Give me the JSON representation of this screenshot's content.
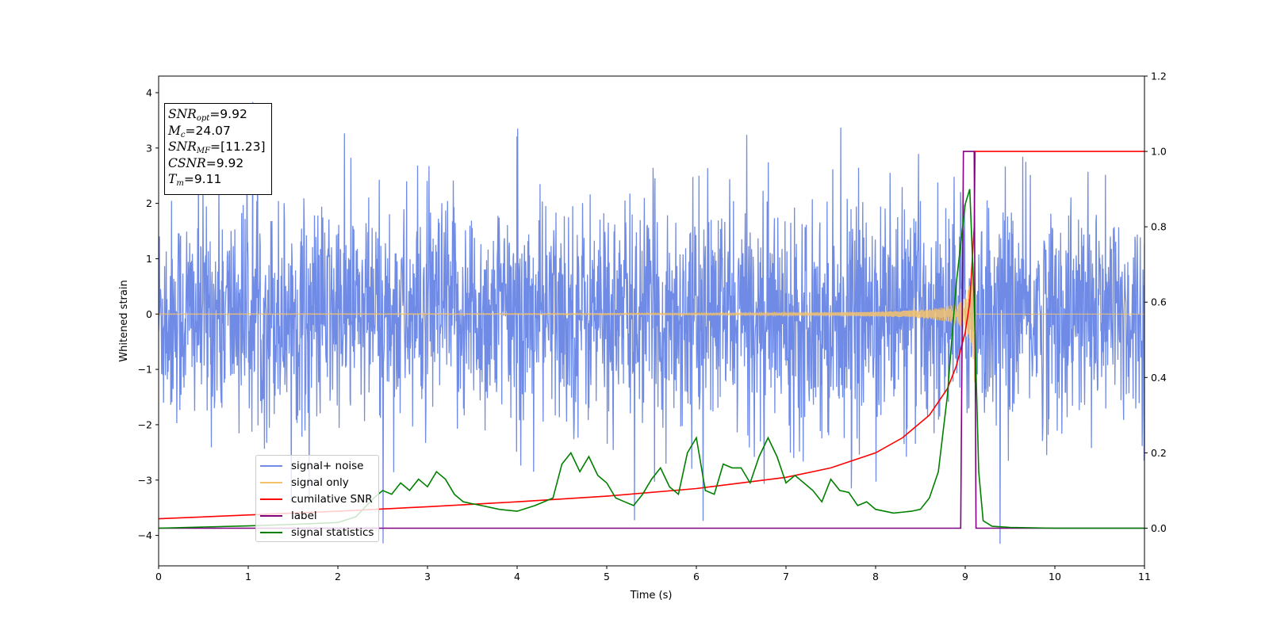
{
  "chart_data": {
    "type": "line",
    "title": "",
    "xlabel": "Time (s)",
    "ylabel": "Whitened strain",
    "xlim": [
      0,
      11
    ],
    "ylim_left": [
      -4.55,
      4.3
    ],
    "ylim_right": [
      -0.1,
      1.2
    ],
    "x_ticks": [
      0,
      1,
      2,
      3,
      4,
      5,
      6,
      7,
      8,
      9,
      10,
      11
    ],
    "y_ticks_left": [
      -4,
      -3,
      -2,
      -1,
      0,
      1,
      2,
      3,
      4
    ],
    "y_ticks_right": [
      0.0,
      0.2,
      0.4,
      0.6,
      0.8,
      1.0,
      1.2
    ],
    "x_tick_labels": [
      "0",
      "1",
      "2",
      "3",
      "4",
      "5",
      "6",
      "7",
      "8",
      "9",
      "10",
      "11"
    ],
    "y_tick_labels_left": [
      "−4",
      "−3",
      "−2",
      "−1",
      "0",
      "1",
      "2",
      "3",
      "4"
    ],
    "y_tick_labels_right": [
      "0.0",
      "0.2",
      "0.4",
      "0.6",
      "0.8",
      "1.0",
      "1.2"
    ],
    "grid": false,
    "legend_position": "lower-left",
    "series": [
      {
        "name": "signal+ noise",
        "axis": "left",
        "color": "#6f8be6",
        "description": "whitened noise, amplitude roughly within ±2.5 with spikes up to ~3.9 and down to ~-4.2"
      },
      {
        "name": "signal only",
        "axis": "left",
        "color": "#f5c26b",
        "chirp_merger_time": 9.11,
        "chirp_peak_amplitude": 1.5
      },
      {
        "name": "cumilative SNR",
        "axis": "right",
        "color": "#ff0000",
        "x": [
          0,
          1,
          2,
          3,
          4,
          5,
          6,
          7,
          7.5,
          8,
          8.3,
          8.6,
          8.8,
          8.9,
          9.0,
          9.05,
          9.1,
          9.11,
          11
        ],
        "y": [
          0.025,
          0.035,
          0.045,
          0.057,
          0.07,
          0.085,
          0.105,
          0.135,
          0.16,
          0.2,
          0.24,
          0.3,
          0.37,
          0.43,
          0.52,
          0.6,
          0.8,
          1.0,
          1.0
        ]
      },
      {
        "name": "label",
        "axis": "right",
        "color": "#800080",
        "x": [
          0,
          8.95,
          8.98,
          9.1,
          9.12,
          11
        ],
        "y": [
          0.0,
          0.0,
          1.0,
          1.0,
          0.0,
          0.0
        ]
      },
      {
        "name": "signal statistics",
        "axis": "right",
        "color": "#008000",
        "x": [
          0,
          0.5,
          1.0,
          1.5,
          2.0,
          2.2,
          2.4,
          2.5,
          2.6,
          2.7,
          2.8,
          2.9,
          3.0,
          3.1,
          3.2,
          3.3,
          3.4,
          3.5,
          3.6,
          3.8,
          4.0,
          4.2,
          4.4,
          4.5,
          4.6,
          4.7,
          4.8,
          4.9,
          5.0,
          5.1,
          5.2,
          5.3,
          5.4,
          5.5,
          5.6,
          5.7,
          5.8,
          5.9,
          6.0,
          6.1,
          6.2,
          6.3,
          6.4,
          6.5,
          6.6,
          6.7,
          6.8,
          6.9,
          7.0,
          7.1,
          7.2,
          7.3,
          7.4,
          7.5,
          7.6,
          7.7,
          7.8,
          7.9,
          8.0,
          8.2,
          8.4,
          8.5,
          8.6,
          8.7,
          8.8,
          8.9,
          9.0,
          9.05,
          9.1,
          9.15,
          9.2,
          9.3,
          9.5,
          10.0,
          11.0
        ],
        "y": [
          0.0,
          0.003,
          0.006,
          0.01,
          0.015,
          0.03,
          0.08,
          0.1,
          0.09,
          0.12,
          0.1,
          0.13,
          0.11,
          0.15,
          0.13,
          0.09,
          0.07,
          0.065,
          0.06,
          0.05,
          0.045,
          0.06,
          0.08,
          0.17,
          0.2,
          0.15,
          0.19,
          0.14,
          0.12,
          0.08,
          0.07,
          0.06,
          0.09,
          0.13,
          0.16,
          0.11,
          0.09,
          0.2,
          0.24,
          0.1,
          0.09,
          0.17,
          0.16,
          0.16,
          0.12,
          0.19,
          0.24,
          0.19,
          0.12,
          0.14,
          0.12,
          0.1,
          0.07,
          0.13,
          0.1,
          0.095,
          0.06,
          0.07,
          0.05,
          0.04,
          0.045,
          0.05,
          0.08,
          0.15,
          0.35,
          0.65,
          0.86,
          0.9,
          0.6,
          0.15,
          0.02,
          0.005,
          0.002,
          0.0,
          0.0
        ]
      }
    ],
    "annotations": {
      "snr_opt": "9.92",
      "mc": "24.07",
      "snr_mf": "[11.23]",
      "csnr": "9.92",
      "tm": "9.11"
    }
  },
  "info_box": {
    "snr_opt_sym": "SNR",
    "snr_opt_sub": "opt",
    "snr_opt_val": "=9.92",
    "mc_sym": "M",
    "mc_sub": "c",
    "mc_val": "=24.07",
    "snr_mf_sym": "SNR",
    "snr_mf_sub": "MF",
    "snr_mf_val": "=[11.23]",
    "csnr_sym": "CSNR",
    "csnr_val": "=9.92",
    "tm_sym": "T",
    "tm_sub": "m",
    "tm_val": "=9.11"
  },
  "legend": {
    "items": [
      {
        "label": "signal+ noise",
        "color": "#6f8be6"
      },
      {
        "label": "signal only",
        "color": "#f5c26b"
      },
      {
        "label": "cumilative SNR",
        "color": "#ff0000"
      },
      {
        "label": "label",
        "color": "#800080"
      },
      {
        "label": "signal statistics",
        "color": "#008000"
      }
    ]
  }
}
